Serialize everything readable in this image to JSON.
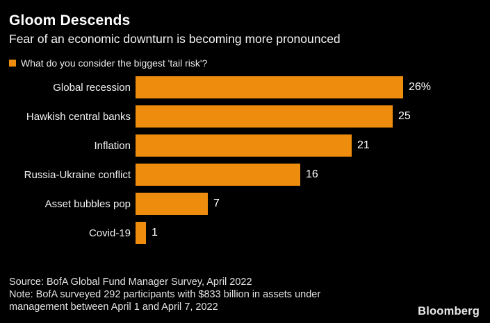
{
  "header": {
    "title": "Gloom Descends",
    "subtitle": "Fear of an economic downturn is becoming more pronounced"
  },
  "legend": {
    "label": "What do you consider the biggest 'tail risk'?"
  },
  "chart_data": {
    "type": "bar",
    "orientation": "horizontal",
    "title": "What do you consider the biggest 'tail risk'?",
    "categories": [
      "Global recession",
      "Hawkish central banks",
      "Inflation",
      "Russia-Ukraine conflict",
      "Asset bubbles pop",
      "Covid-19"
    ],
    "values": [
      26,
      25,
      21,
      16,
      7,
      1
    ],
    "value_labels": [
      "26%",
      "25",
      "21",
      "16",
      "7",
      "1"
    ],
    "xlabel": "",
    "ylabel": "",
    "xlim": [
      0,
      26
    ],
    "grid": false,
    "legend_position": "top",
    "bar_color": "#EE8C0E"
  },
  "footer": {
    "source": "Source: BofA Global Fund Manager Survey, April 2022",
    "note": "Note: BofA surveyed 292 participants with $833 billion in assets under management between April 1 and April 7, 2022",
    "brand": "Bloomberg"
  },
  "colors": {
    "background": "#000000",
    "bar": "#EE8C0E",
    "title_text": "#FFFFFF",
    "body_text": "#F2F2F2",
    "muted_text": "#E3E3E3"
  }
}
